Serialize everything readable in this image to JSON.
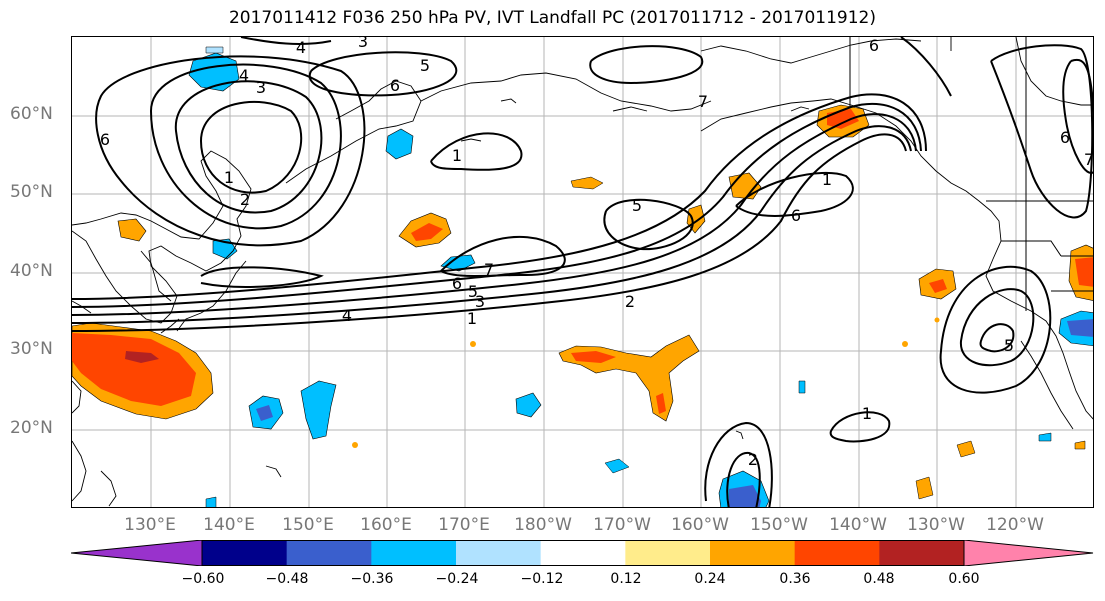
{
  "title": "2017011412 F036 250 hPa PV, IVT Landfall PC (2017011712 - 2017011912)",
  "lat_labels": [
    "60°N",
    "50°N",
    "40°N",
    "30°N",
    "20°N"
  ],
  "lon_labels": [
    "130°E",
    "140°E",
    "150°E",
    "160°E",
    "170°E",
    "180°W",
    "170°W",
    "160°W",
    "150°W",
    "140°W",
    "130°W",
    "120°W"
  ],
  "colorbar": {
    "colors": [
      "#9932cc",
      "#00008b",
      "#3a5fcd",
      "#00bfff",
      "#b0e2ff",
      "#ffffff",
      "#ffec8b",
      "#ffa500",
      "#ff4500",
      "#b22222",
      "#ff82ab"
    ],
    "tick_labels": [
      "−0.60",
      "−0.48",
      "−0.36",
      "−0.24",
      "−0.12",
      "0.12",
      "0.24",
      "0.36",
      "0.48",
      "0.60"
    ],
    "extend": "both"
  },
  "contour_labels": [
    "4",
    "3",
    "6",
    "5",
    "6",
    "7",
    "6",
    "4",
    "3",
    "1",
    "2",
    "1",
    "6",
    "7",
    "5",
    "6",
    "4",
    "3",
    "1",
    "2",
    "5",
    "6",
    "7",
    "1",
    "5",
    "1",
    "2"
  ]
}
